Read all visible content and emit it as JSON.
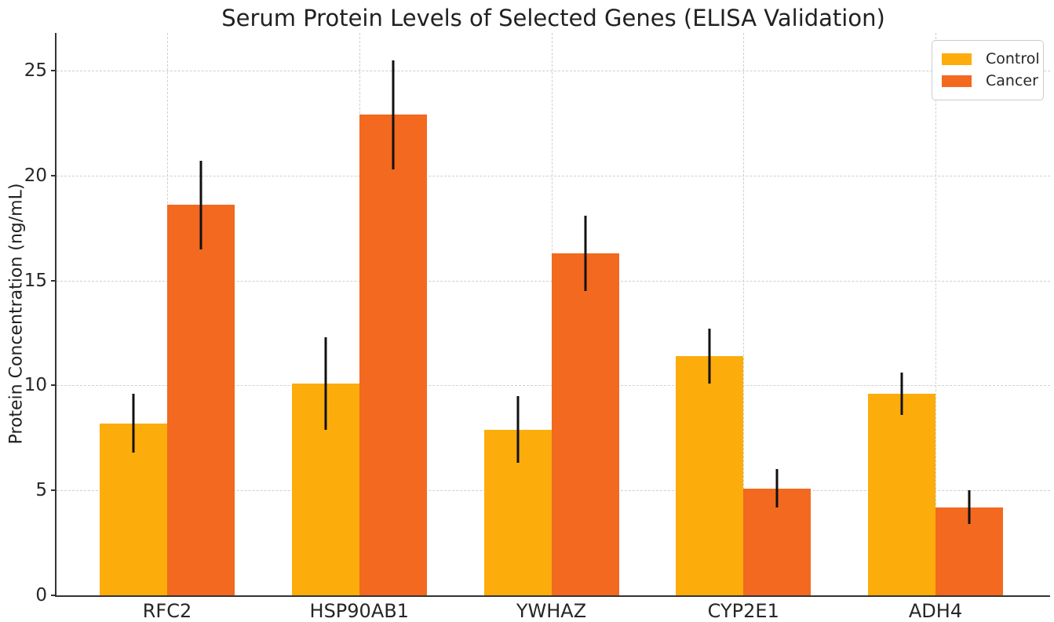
{
  "chart_data": {
    "type": "bar",
    "title": "Serum Protein Levels of Selected Genes (ELISA Validation)",
    "xlabel": "",
    "ylabel": "Protein Concentration (ng/mL)",
    "categories": [
      "RFC2",
      "HSP90AB1",
      "YWHAZ",
      "CYP2E1",
      "ADH4"
    ],
    "series": [
      {
        "name": "Control",
        "color": "#FCAD0C",
        "values": [
          8.2,
          10.1,
          7.9,
          11.4,
          9.6
        ],
        "errors": [
          1.4,
          2.2,
          1.6,
          1.3,
          1.0
        ]
      },
      {
        "name": "Cancer",
        "color": "#F2691F",
        "values": [
          18.6,
          22.9,
          16.3,
          5.1,
          4.2
        ],
        "errors": [
          2.1,
          2.6,
          1.8,
          0.9,
          0.8
        ]
      }
    ],
    "yticks": [
      0,
      5,
      10,
      15,
      20,
      25
    ],
    "ylim": [
      0,
      26.8
    ],
    "grid": true,
    "error_bars": true,
    "legend_position": "upper right"
  }
}
